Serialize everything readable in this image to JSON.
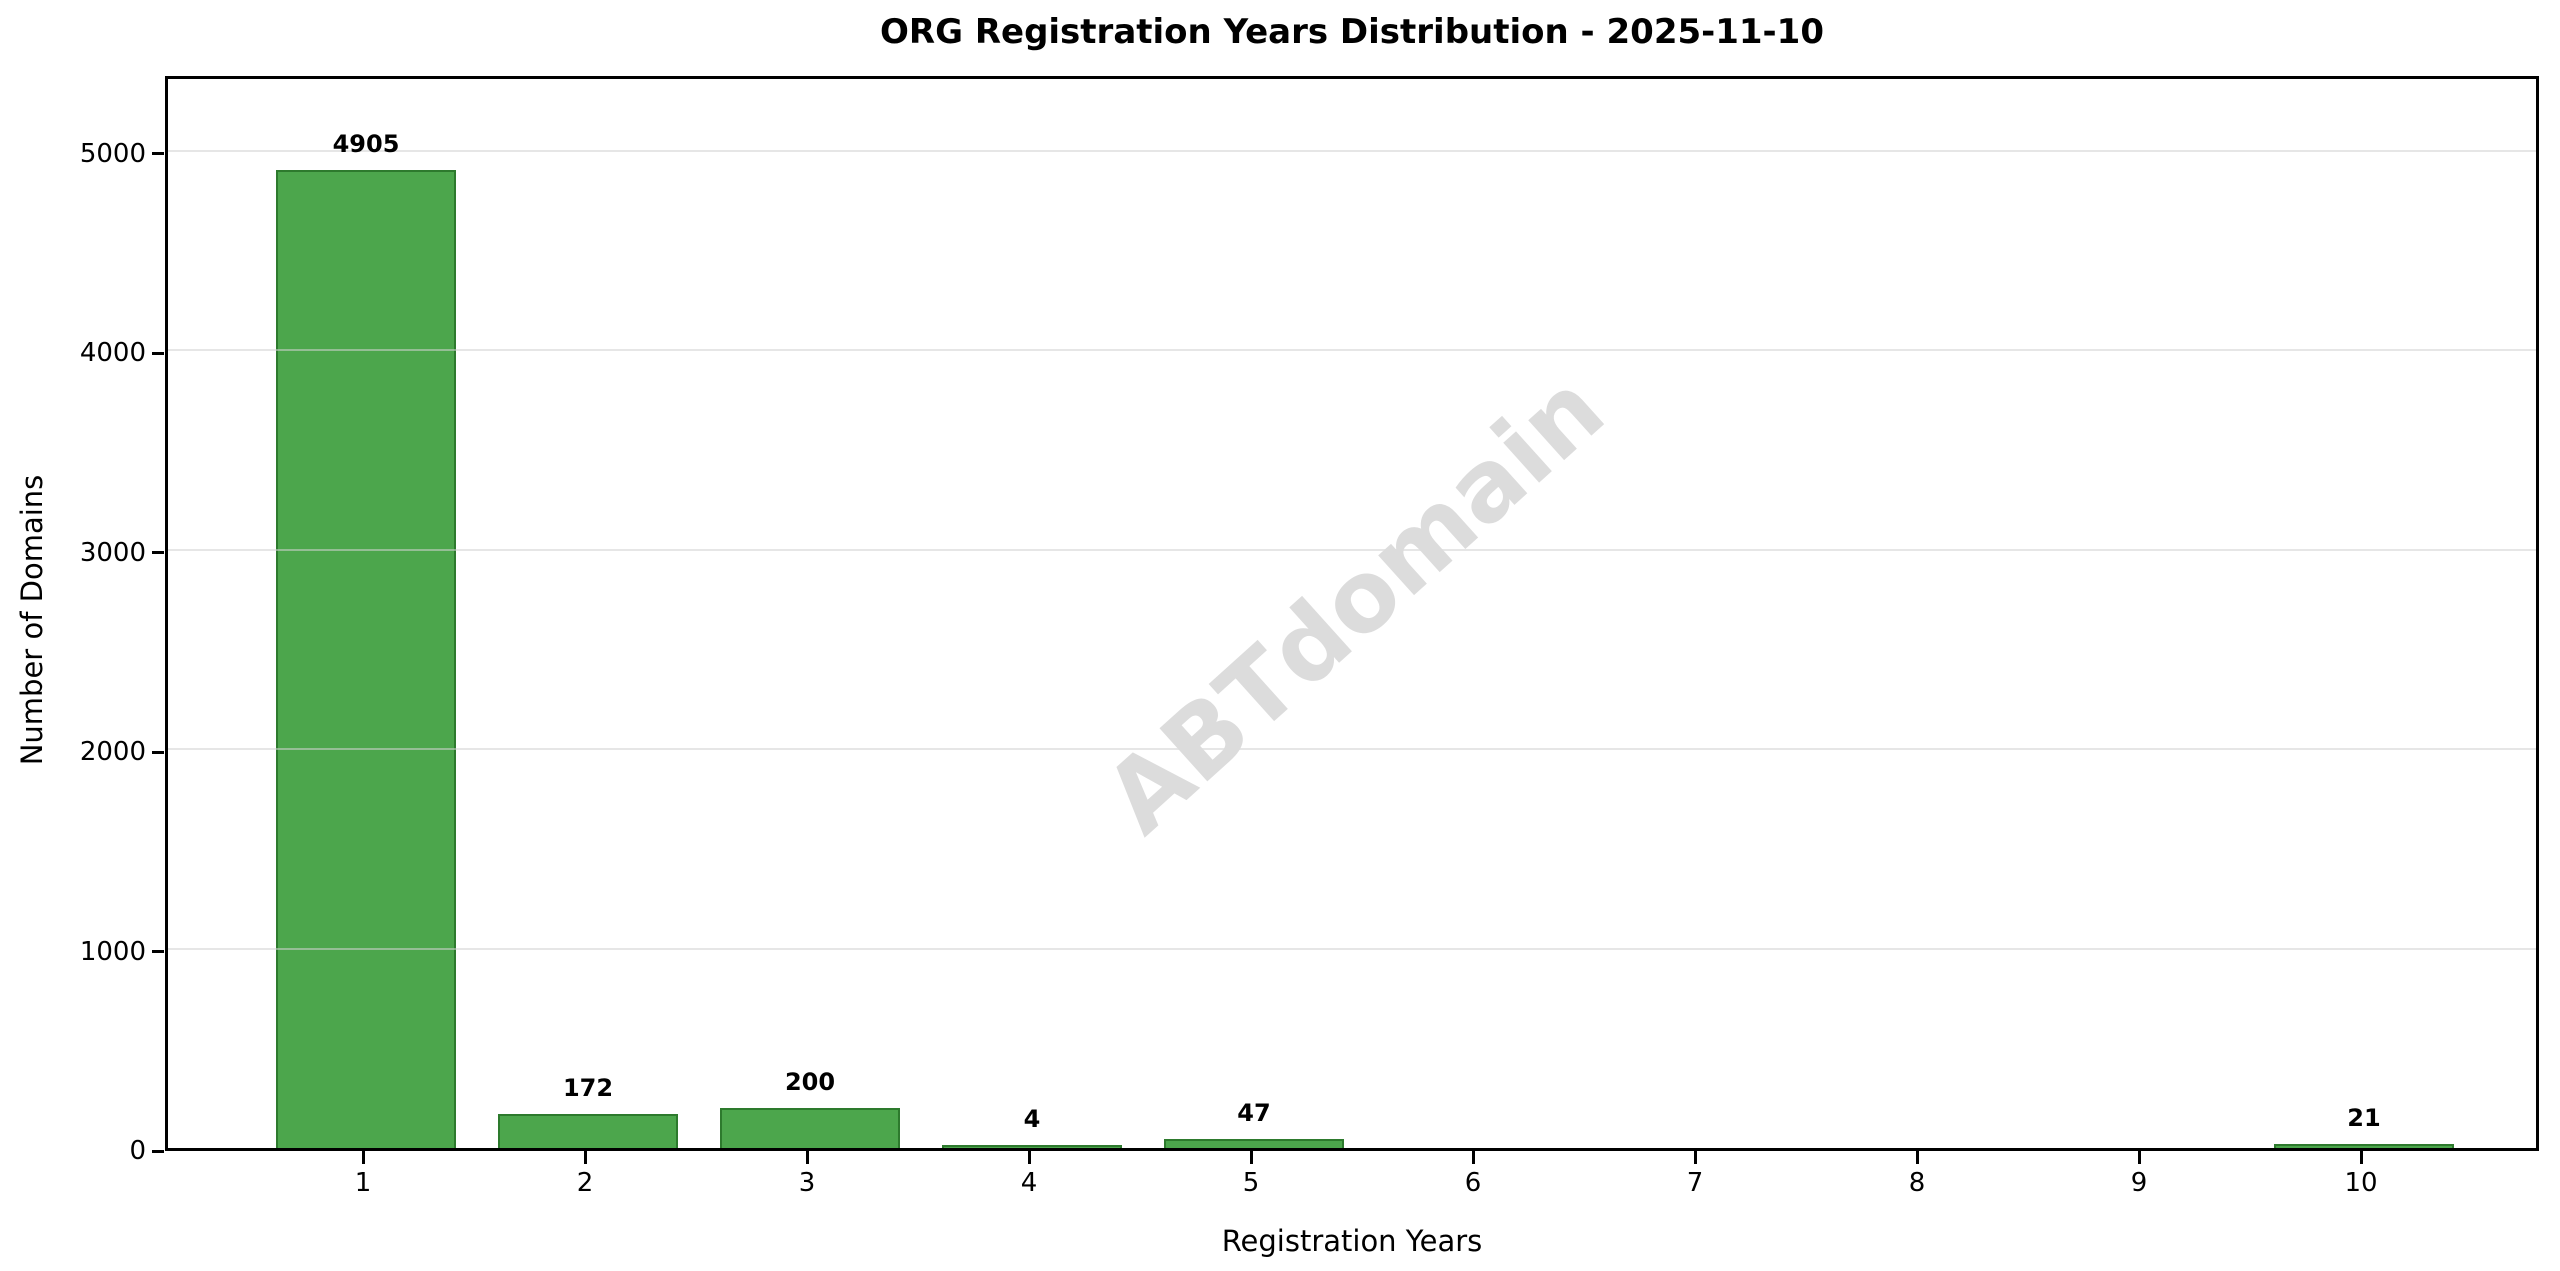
{
  "chart_data": {
    "type": "bar",
    "title": "ORG Registration Years Distribution - 2025-11-10",
    "xlabel": "Registration Years",
    "ylabel": "Number of Domains",
    "categories": [
      1,
      2,
      3,
      4,
      5,
      6,
      7,
      8,
      9,
      10
    ],
    "values": [
      4905,
      172,
      200,
      4,
      47,
      0,
      0,
      0,
      0,
      21
    ],
    "bar_labels": [
      "4905",
      "172",
      "200",
      "4",
      "47",
      "",
      "",
      "",
      "",
      "21"
    ],
    "yticks": [
      0,
      1000,
      2000,
      3000,
      4000,
      5000
    ],
    "ylim": [
      0,
      5390
    ],
    "grid": "horizontal",
    "legend_position": "none",
    "bar_color": "#4ca64c",
    "bar_edge_color": "#2d7a2d",
    "watermark": "ABTdomain",
    "watermark_color": "#dcdcdc",
    "background_color": "#ffffff"
  }
}
